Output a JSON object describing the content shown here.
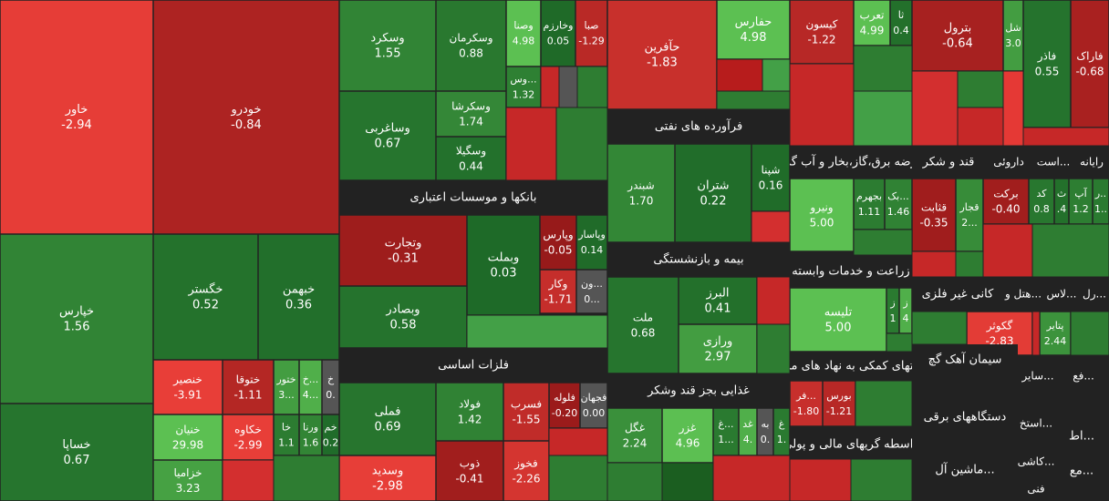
{
  "tiles": [
    {
      "label": "خاور",
      "change": "-2.94"
    },
    {
      "label": "خودرو",
      "change": "-0.84"
    },
    {
      "label": "خپارس",
      "change": "1.56"
    },
    {
      "label": "خساپا",
      "change": "0.67"
    },
    {
      "label": "خگستر",
      "change": "0.52"
    },
    {
      "label": "خبهمن",
      "change": "0.36"
    },
    {
      "label": "خنصیر",
      "change": "-3.91"
    },
    {
      "label": "ختوقا",
      "change": "-1.11"
    },
    {
      "label": "ختور",
      "change": "3..."
    },
    {
      "label": "خ...",
      "change": "4..."
    },
    {
      "label": "خ",
      "change": "0."
    },
    {
      "label": "خنیان",
      "change": "29.98"
    },
    {
      "label": "خکاوه",
      "change": "-2.99"
    },
    {
      "label": "خا",
      "change": "1.1"
    },
    {
      "label": "ورنا",
      "change": "1.6"
    },
    {
      "label": "خم",
      "change": "0.2"
    },
    {
      "label": "خزامیا",
      "change": "3.23"
    },
    {
      "label": "وسکرد",
      "change": "1.55"
    },
    {
      "label": "وسکرمان",
      "change": "0.88"
    },
    {
      "label": "وصنا",
      "change": "4.98"
    },
    {
      "label": "وخارزم",
      "change": "0.05"
    },
    {
      "label": "صبا",
      "change": "-1.29"
    },
    {
      "label": "وس...",
      "change": "1.32"
    },
    {
      "label": "وساغربی",
      "change": "0.67"
    },
    {
      "label": "وسکرشا",
      "change": "1.74"
    },
    {
      "label": "وسگیلا",
      "change": "0.44"
    },
    {
      "label": "وتجارت",
      "change": "-0.31"
    },
    {
      "label": "وبملت",
      "change": "0.03"
    },
    {
      "label": "وپارس",
      "change": "-0.05"
    },
    {
      "label": "وپاسار",
      "change": "0.14"
    },
    {
      "label": "وکار",
      "change": "-1.71"
    },
    {
      "label": "ون...",
      "change": "0..."
    },
    {
      "label": "وبصادر",
      "change": "0.58"
    },
    {
      "label": "فملی",
      "change": "0.69"
    },
    {
      "label": "فولاد",
      "change": "1.42"
    },
    {
      "label": "فسرب",
      "change": "-1.55"
    },
    {
      "label": "فلوله",
      "change": "-0.20"
    },
    {
      "label": "فجهان",
      "change": "0.00"
    },
    {
      "label": "وسدید",
      "change": "-2.98"
    },
    {
      "label": "ذوب",
      "change": "-0.41"
    },
    {
      "label": "فخوز",
      "change": "-2.26"
    },
    {
      "label": "حآفرین",
      "change": "-1.83"
    },
    {
      "label": "حفارس",
      "change": "4.98"
    },
    {
      "label": "شبندر",
      "change": "1.70"
    },
    {
      "label": "شتران",
      "change": "0.22"
    },
    {
      "label": "شپنا",
      "change": "0.16"
    },
    {
      "label": "ملت",
      "change": "0.68"
    },
    {
      "label": "البرز",
      "change": "0.41"
    },
    {
      "label": "ورازی",
      "change": "2.97"
    },
    {
      "label": "غگل",
      "change": "2.24"
    },
    {
      "label": "غزر",
      "change": "4.96"
    },
    {
      "label": "غ...",
      "change": "1..."
    },
    {
      "label": "غد",
      "change": "4."
    },
    {
      "label": "به",
      "change": "0."
    },
    {
      "label": "غ",
      "change": "1."
    },
    {
      "label": "کیسون",
      "change": "-1.22"
    },
    {
      "label": "تعرب",
      "change": "4.99"
    },
    {
      "label": "ثا",
      "change": "0.4"
    },
    {
      "label": "ونیرو",
      "change": "5.00"
    },
    {
      "label": "بجهرم",
      "change": "1.11"
    },
    {
      "label": "بک...",
      "change": "1.46"
    },
    {
      "label": "تلیسه",
      "change": "5.00"
    },
    {
      "label": "ز",
      "change": "1"
    },
    {
      "label": "ز",
      "change": "4"
    },
    {
      "label": "فر...",
      "change": "-1.80"
    },
    {
      "label": "بورس",
      "change": "-1.21"
    },
    {
      "label": "بترول",
      "change": "-0.64"
    },
    {
      "label": "شل",
      "change": "3.0"
    },
    {
      "label": "فاذر",
      "change": "0.55"
    },
    {
      "label": "فاراک",
      "change": "-0.68"
    },
    {
      "label": "قثابت",
      "change": "-0.35"
    },
    {
      "label": "قجار",
      "change": "2..."
    },
    {
      "label": "برکت",
      "change": "-0.40"
    },
    {
      "label": "کد",
      "change": "0.8"
    },
    {
      "label": "ث",
      "change": ".4"
    },
    {
      "label": "آپ",
      "change": "1.2"
    },
    {
      "label": "ر..",
      "change": "1.."
    },
    {
      "label": "گکوثر",
      "change": "-2.83"
    },
    {
      "label": "پتایر",
      "change": "2.44"
    }
  ],
  "headers": [
    "بانکها و موسسات اعتباری",
    "فلزات اساسی",
    "فرآورده های نفتی",
    "بیمه و بازنشستگی",
    "غذایی بجز قند وشکر",
    "عرضه برق،گاز،بخار و آب گرم",
    "زراعت و خدمات وابسته",
    "بالیتهای کمکی به نهاد های مالی",
    "واسطه گریهای مالی و پولی",
    "قند و شکر",
    "داروئی",
    "است...",
    "رایانه",
    "کانی غیر فلزی",
    "هتل و...",
    "لاس...",
    "رل...",
    "سیمان آهک گچ",
    "سایر...",
    "فع...",
    "دستگاههای برقی",
    "استخ...",
    "اط...",
    "ماشین آل...",
    "کاشی...",
    "مع...",
    "فنی"
  ]
}
